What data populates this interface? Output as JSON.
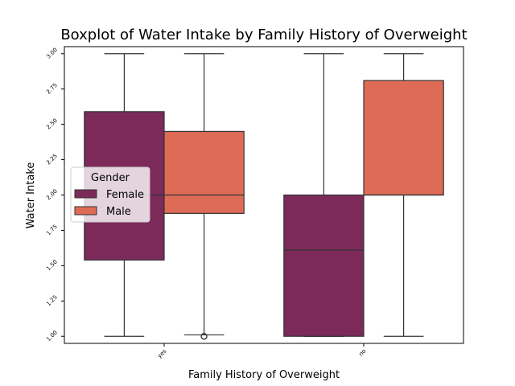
{
  "chart_data": {
    "type": "box",
    "title": "Boxplot of Water Intake by Family History of Overweight",
    "xlabel": "Family History of Overweight",
    "ylabel": "Water Intake",
    "categories": [
      "yes",
      "no"
    ],
    "ylim": [
      0.95,
      3.05
    ],
    "yticks": [
      1.0,
      1.25,
      1.5,
      1.75,
      2.0,
      2.25,
      2.5,
      2.75,
      3.0
    ],
    "ytick_labels": [
      "1.00",
      "1.25",
      "1.50",
      "1.75",
      "2.00",
      "2.25",
      "2.50",
      "2.75",
      "3.00"
    ],
    "legend": {
      "title": "Gender",
      "position": "center-left"
    },
    "series": [
      {
        "name": "Female",
        "color": "#7b2a5a",
        "boxes": [
          {
            "category": "yes",
            "whislo": 1.0,
            "q1": 1.54,
            "med": 2.0,
            "q3": 2.59,
            "whishi": 3.0,
            "fliers": []
          },
          {
            "category": "no",
            "whislo": 1.0,
            "q1": 1.0,
            "med": 1.61,
            "q3": 2.0,
            "whishi": 3.0,
            "fliers": []
          }
        ]
      },
      {
        "name": "Male",
        "color": "#de6b56",
        "boxes": [
          {
            "category": "yes",
            "whislo": 1.01,
            "q1": 1.87,
            "med": 2.0,
            "q3": 2.45,
            "whishi": 3.0,
            "fliers": [
              1.0,
              1.0
            ]
          },
          {
            "category": "no",
            "whislo": 1.0,
            "q1": 2.0,
            "med": 2.0,
            "q3": 2.81,
            "whishi": 3.0,
            "fliers": []
          }
        ]
      }
    ]
  }
}
